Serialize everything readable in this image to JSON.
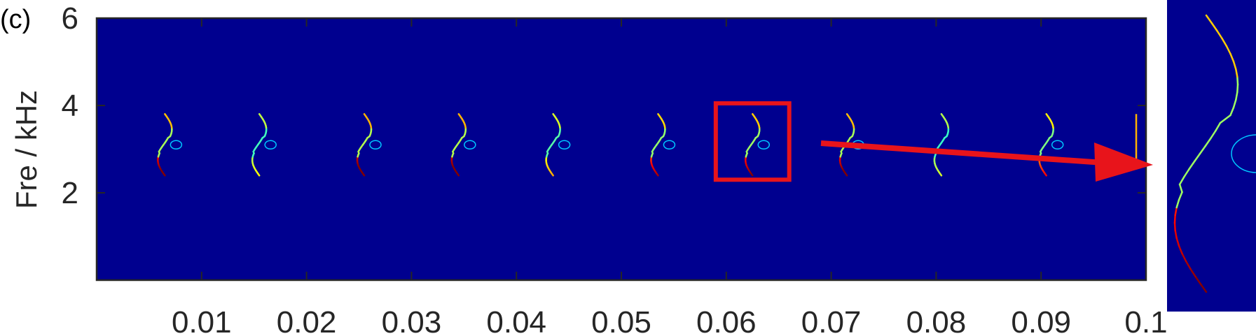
{
  "panel_label": "(c)",
  "chart_data": {
    "type": "heatmap",
    "title": "",
    "xlabel": "",
    "ylabel": "Fre / kHz",
    "xlim": [
      0,
      0.1
    ],
    "ylim": [
      0,
      6
    ],
    "x_ticks": [
      "0.01",
      "0.02",
      "0.03",
      "0.04",
      "0.05",
      "0.06",
      "0.07",
      "0.08",
      "0.09",
      "0.1"
    ],
    "x_tick_values": [
      0.01,
      0.02,
      0.03,
      0.04,
      0.05,
      0.06,
      0.07,
      0.08,
      0.09,
      0.1
    ],
    "y_ticks": [
      "2",
      "4",
      "6"
    ],
    "y_tick_values": [
      2,
      4,
      6
    ],
    "background_color": "#00008F",
    "colormap": "jet",
    "grid": false,
    "signature_center_freq_khz": 3.1,
    "signatures": [
      {
        "t": 0.0065,
        "loop": true,
        "intensity": 0.95
      },
      {
        "t": 0.0155,
        "loop": true,
        "intensity": 0.45
      },
      {
        "t": 0.0255,
        "loop": true,
        "intensity": 1.0
      },
      {
        "t": 0.0345,
        "loop": true,
        "intensity": 1.0
      },
      {
        "t": 0.0435,
        "loop": true,
        "intensity": 0.55
      },
      {
        "t": 0.0535,
        "loop": true,
        "intensity": 0.85
      },
      {
        "t": 0.0625,
        "loop": true,
        "intensity": 0.9
      },
      {
        "t": 0.0715,
        "loop": true,
        "intensity": 0.95
      },
      {
        "t": 0.0805,
        "loop": false,
        "intensity": 0.4
      },
      {
        "t": 0.0905,
        "loop": true,
        "intensity": 0.75
      }
    ],
    "highlight_box": {
      "x0": 0.059,
      "x1": 0.066,
      "y0": 2.3,
      "y1": 4.05,
      "color": "#E8141B"
    },
    "arrow_color": "#E8141B",
    "zoom_inset": {
      "background_color": "#00008F",
      "source_t": 0.0625
    }
  }
}
